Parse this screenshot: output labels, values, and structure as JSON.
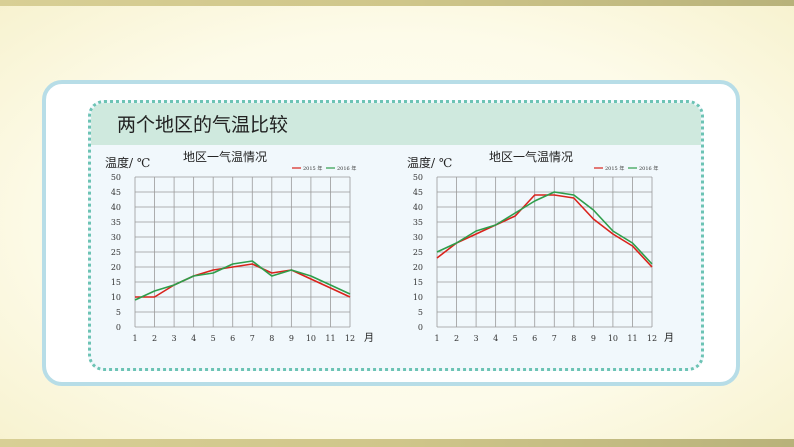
{
  "header": {
    "title": "两个地区的气温比较"
  },
  "chart_data": [
    {
      "type": "line",
      "title": "地区一气温情况",
      "ylabel": "温度/ ℃",
      "xlabel": "月",
      "categories": [
        "1",
        "2",
        "3",
        "4",
        "5",
        "6",
        "7",
        "8",
        "9",
        "10",
        "11",
        "12"
      ],
      "ylim": [
        0,
        50
      ],
      "yticks": [
        0,
        5,
        10,
        15,
        20,
        25,
        30,
        35,
        40,
        45,
        50
      ],
      "grid": true,
      "legend": "top-right",
      "series": [
        {
          "name": "2015 年",
          "color": "#d9231c",
          "values": [
            10,
            10,
            14,
            17,
            19,
            20,
            21,
            18,
            19,
            16,
            13,
            10
          ]
        },
        {
          "name": "2016 年",
          "color": "#2e9e4b",
          "values": [
            9,
            12,
            14,
            17,
            18,
            21,
            22,
            17,
            19,
            17,
            14,
            11
          ]
        }
      ]
    },
    {
      "type": "line",
      "title": "地区一气温情况",
      "ylabel": "温度/ ℃",
      "xlabel": "月",
      "categories": [
        "1",
        "2",
        "3",
        "4",
        "5",
        "6",
        "7",
        "8",
        "9",
        "10",
        "11",
        "12"
      ],
      "ylim": [
        0,
        50
      ],
      "yticks": [
        0,
        5,
        10,
        15,
        20,
        25,
        30,
        35,
        40,
        45,
        50
      ],
      "grid": true,
      "legend": "top-right",
      "series": [
        {
          "name": "2015 年",
          "color": "#d9231c",
          "values": [
            23,
            28,
            31,
            34,
            37,
            44,
            44,
            43,
            36,
            31,
            27,
            20
          ]
        },
        {
          "name": "2016 年",
          "color": "#2e9e4b",
          "values": [
            25,
            28,
            32,
            34,
            38,
            42,
            45,
            44,
            39,
            32,
            28,
            21
          ]
        }
      ]
    }
  ]
}
